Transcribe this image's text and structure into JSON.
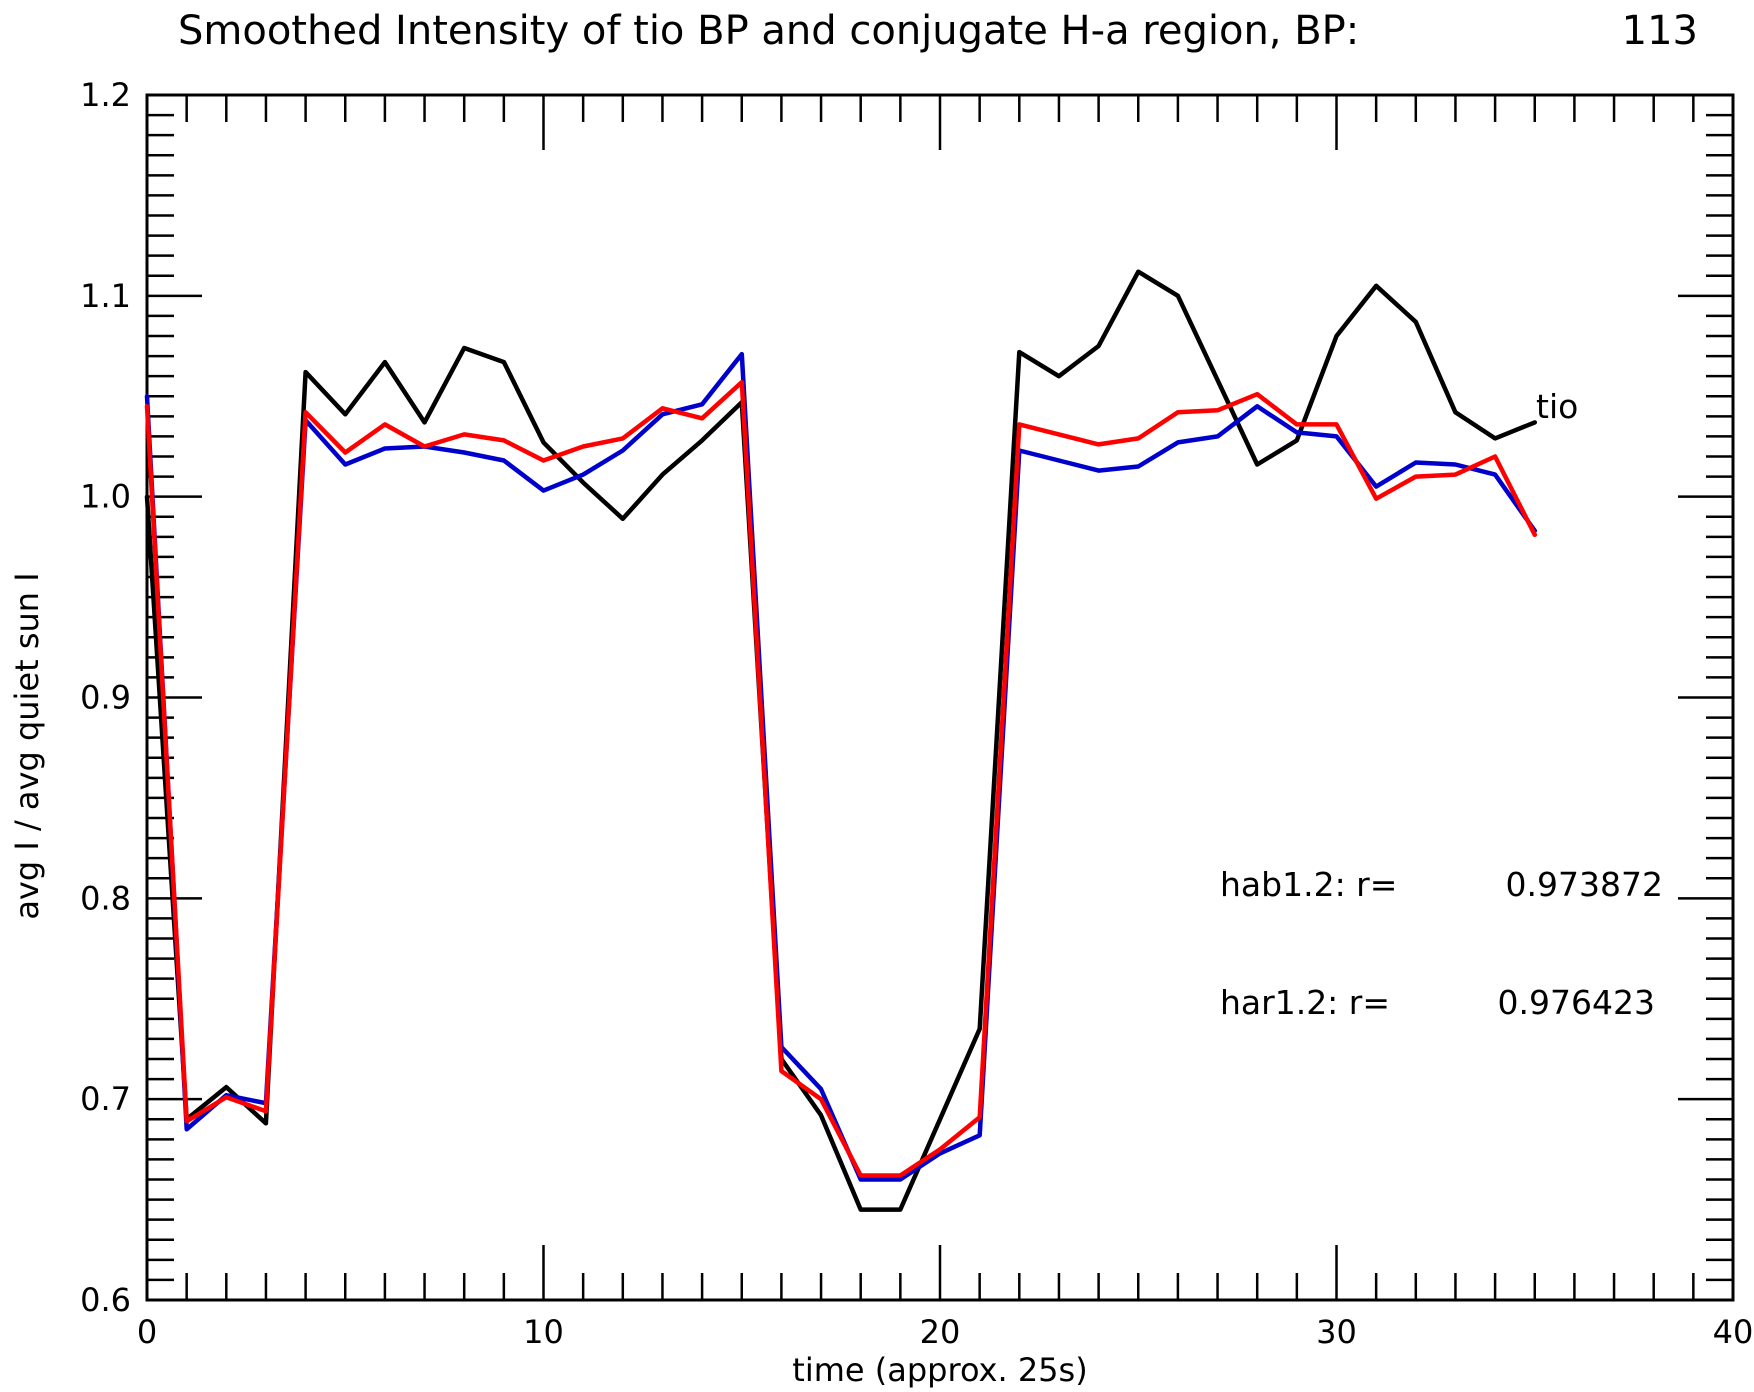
{
  "chart_data": {
    "type": "line",
    "title": "Smoothed Intensity of tio BP and conjugate H-a region, BP:",
    "title_value": "113",
    "xlabel": "time (approx. 25s)",
    "ylabel": "avg I / avg quiet sun I",
    "xlim": [
      0,
      40
    ],
    "ylim": [
      0.6,
      1.2
    ],
    "x_ticks": [
      0,
      10,
      20,
      30,
      40
    ],
    "x_tick_labels": [
      "0",
      "10",
      "20",
      "30",
      "40"
    ],
    "y_ticks": [
      0.6,
      0.7,
      0.8,
      0.9,
      1.0,
      1.1,
      1.2
    ],
    "y_tick_labels": [
      "0.6",
      "0.7",
      "0.8",
      "0.9",
      "1.0",
      "1.1",
      "1.2"
    ],
    "x_minor_step": 1,
    "y_minor_step": 0.01,
    "grid": false,
    "series": [
      {
        "name": "tio",
        "color": "#000000",
        "x": [
          0,
          1,
          2,
          3,
          4,
          5,
          6,
          7,
          8,
          9,
          10,
          11,
          12,
          13,
          14,
          15,
          16,
          17,
          18,
          19,
          20,
          21,
          22,
          23,
          24,
          25,
          26,
          27,
          28,
          29,
          30,
          31,
          32,
          33,
          34,
          35
        ],
        "values": [
          1.0,
          0.69,
          0.706,
          0.688,
          1.062,
          1.041,
          1.067,
          1.037,
          1.074,
          1.067,
          1.027,
          1.007,
          0.989,
          1.011,
          1.028,
          1.047,
          0.72,
          0.692,
          0.645,
          0.645,
          0.69,
          0.735,
          1.072,
          1.06,
          1.075,
          1.112,
          1.1,
          1.058,
          1.016,
          1.028,
          1.08,
          1.105,
          1.087,
          1.042,
          1.029,
          1.037
        ]
      },
      {
        "name": "hab1.2",
        "color": "#0000cc",
        "x": [
          0,
          1,
          2,
          3,
          4,
          5,
          6,
          7,
          8,
          9,
          10,
          11,
          12,
          13,
          14,
          15,
          16,
          17,
          18,
          19,
          20,
          21,
          22,
          23,
          24,
          25,
          26,
          27,
          28,
          29,
          30,
          31,
          32,
          33,
          34,
          35
        ],
        "values": [
          1.05,
          0.685,
          0.702,
          0.698,
          1.038,
          1.016,
          1.024,
          1.025,
          1.022,
          1.018,
          1.003,
          1.011,
          1.023,
          1.041,
          1.046,
          1.071,
          0.726,
          0.705,
          0.66,
          0.66,
          0.673,
          0.682,
          1.023,
          1.018,
          1.013,
          1.015,
          1.027,
          1.03,
          1.045,
          1.032,
          1.03,
          1.005,
          1.017,
          1.016,
          1.011,
          0.983
        ]
      },
      {
        "name": "har1.2",
        "color": "#ff0000",
        "x": [
          0,
          1,
          2,
          3,
          4,
          5,
          6,
          7,
          8,
          9,
          10,
          11,
          12,
          13,
          14,
          15,
          16,
          17,
          18,
          19,
          20,
          21,
          22,
          23,
          24,
          25,
          26,
          27,
          28,
          29,
          30,
          31,
          32,
          33,
          34,
          35
        ],
        "values": [
          1.045,
          0.689,
          0.701,
          0.694,
          1.042,
          1.022,
          1.036,
          1.025,
          1.031,
          1.028,
          1.018,
          1.025,
          1.029,
          1.044,
          1.039,
          1.057,
          0.714,
          0.7,
          0.662,
          0.662,
          0.675,
          0.691,
          1.036,
          1.031,
          1.026,
          1.029,
          1.042,
          1.043,
          1.051,
          1.036,
          1.036,
          0.999,
          1.01,
          1.011,
          1.02,
          0.981
        ]
      }
    ],
    "annotations": [
      {
        "key": "series_tag",
        "text": "tio"
      },
      {
        "key": "corr_hab",
        "label": "hab1.2: r=",
        "value": "0.973872"
      },
      {
        "key": "corr_har",
        "label": "har1.2: r=",
        "value": "0.976423"
      }
    ]
  }
}
